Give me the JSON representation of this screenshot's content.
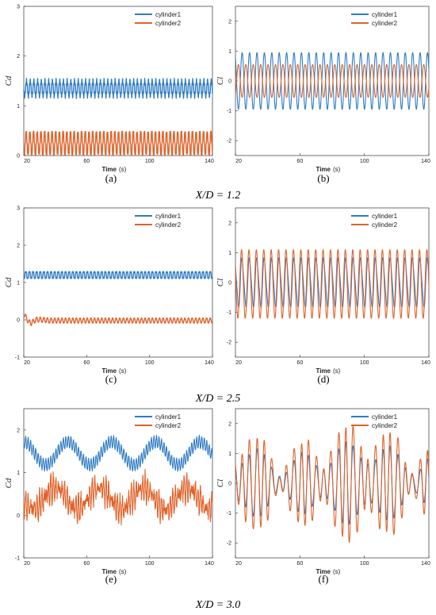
{
  "series_names": [
    "cylinder1",
    "cylinder2"
  ],
  "colors": {
    "cylinder1": "#2f7cc4",
    "cylinder2": "#e0622a"
  },
  "x_axis": {
    "label": "Time",
    "unit": "(s)",
    "ticks": [
      "20",
      "60",
      "100",
      "140"
    ]
  },
  "rows": [
    {
      "condition": "X/D = 1.2"
    },
    {
      "condition": "X/D = 2.5"
    },
    {
      "condition": "X/D = 3.0"
    }
  ],
  "chart_data": [
    {
      "id": "a",
      "panel_label": "(a)",
      "type": "line",
      "ylabel": "Cd",
      "ylim": [
        0,
        3
      ],
      "yticks": [
        "0",
        "1",
        "2",
        "3"
      ],
      "xlim": [
        20,
        140
      ],
      "series": [
        {
          "name": "cylinder1",
          "mean": 1.35,
          "amp": 0.15,
          "period": 2.35
        },
        {
          "name": "cylinder2",
          "mean": 0.25,
          "amp": 0.22,
          "period": 2.35
        }
      ]
    },
    {
      "id": "b",
      "panel_label": "(b)",
      "type": "line",
      "ylabel": "Cl",
      "ylim": [
        -2.5,
        2.5
      ],
      "yticks": [
        "-2",
        "-1",
        "0",
        "1",
        "2"
      ],
      "xlim": [
        20,
        140
      ],
      "series": [
        {
          "name": "cylinder1",
          "mean": 0,
          "amp": 0.95,
          "period": 4.6
        },
        {
          "name": "cylinder2",
          "mean": 0,
          "amp": 0.55,
          "period": 4.6
        }
      ]
    },
    {
      "id": "c",
      "panel_label": "(c)",
      "type": "line",
      "ylabel": "Cd",
      "ylim": [
        -1,
        3
      ],
      "yticks": [
        "-1",
        "0",
        "1",
        "2",
        "3"
      ],
      "xlim": [
        20,
        140
      ],
      "series": [
        {
          "name": "cylinder1",
          "mean": 1.2,
          "amp": 0.1,
          "period": 2.3
        },
        {
          "name": "cylinder2",
          "mean": -0.02,
          "amp": 0.07,
          "period": 2.3
        }
      ]
    },
    {
      "id": "d",
      "panel_label": "(d)",
      "type": "line",
      "ylabel": "Cl",
      "ylim": [
        -2.5,
        2.5
      ],
      "yticks": [
        "-2",
        "-1",
        "0",
        "1",
        "2"
      ],
      "xlim": [
        20,
        140
      ],
      "series": [
        {
          "name": "cylinder1",
          "mean": 0,
          "amp": 0.8,
          "period": 4.6
        },
        {
          "name": "cylinder2",
          "mean": 0,
          "amp": 1.15,
          "period": 4.6
        }
      ]
    },
    {
      "id": "e",
      "panel_label": "(e)",
      "type": "line",
      "ylabel": "Cd",
      "ylim": [
        -1,
        2.5
      ],
      "yticks": [
        "-1",
        "0",
        "1",
        "2"
      ],
      "xlim": [
        20,
        140
      ],
      "series": [
        {
          "name": "cylinder1",
          "mean": 1.45,
          "amp": 0.3,
          "period": 1.6
        },
        {
          "name": "cylinder2",
          "mean": 0.4,
          "amp": 0.45,
          "period": 1.6
        }
      ]
    },
    {
      "id": "f",
      "panel_label": "(f)",
      "type": "line",
      "ylabel": "Cl",
      "ylim": [
        -2.5,
        2.5
      ],
      "yticks": [
        "-2",
        "-1",
        "0",
        "1",
        "2"
      ],
      "xlim": [
        20,
        140
      ],
      "series": [
        {
          "name": "cylinder1",
          "mean": 0,
          "amp": 1.1,
          "period": 4.6
        },
        {
          "name": "cylinder2",
          "mean": 0,
          "amp": 1.5,
          "period": 4.6
        }
      ]
    }
  ]
}
